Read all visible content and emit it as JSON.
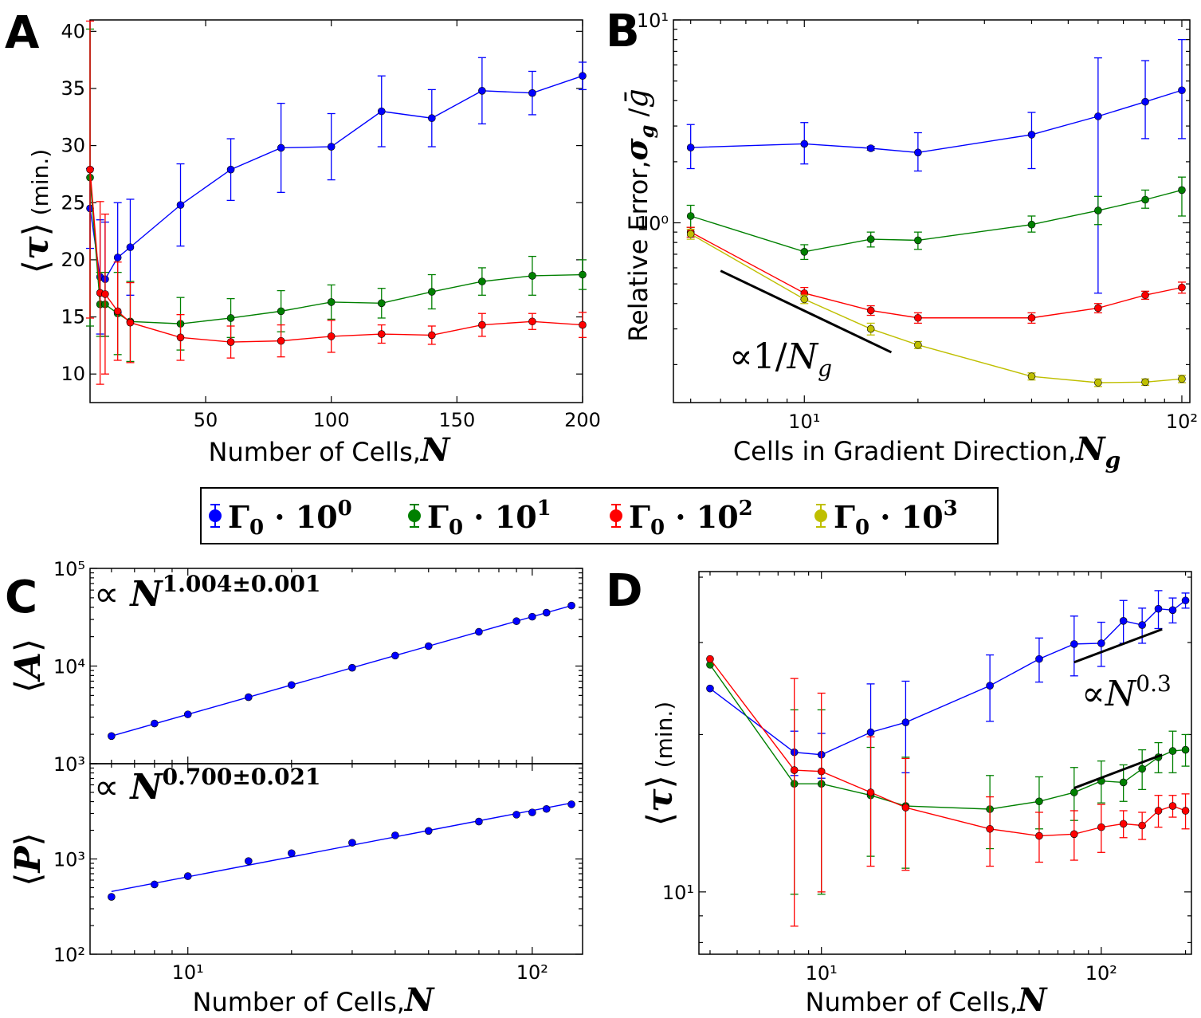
{
  "colors": {
    "blue": "#0000ff",
    "green": "#008000",
    "red": "#ff0000",
    "yellow": "#bfbf00",
    "black": "#000000"
  },
  "legend": {
    "entries": [
      {
        "label": "Γ₀ · 10⁰",
        "color": "blue"
      },
      {
        "label": "Γ₀ · 10¹",
        "color": "green"
      },
      {
        "label": "Γ₀ · 10²",
        "color": "red"
      },
      {
        "label": "Γ₀ · 10³",
        "color": "yellow"
      }
    ]
  },
  "chart_data": [
    {
      "panel": "A",
      "type": "line",
      "xlabel": "Number of Cells, N",
      "ylabel": "⟨τ⟩ (min.)",
      "xlim": [
        4,
        200
      ],
      "ylim": [
        7.5,
        41
      ],
      "xticks": [
        50,
        100,
        150,
        200
      ],
      "yticks": [
        10,
        15,
        20,
        25,
        30,
        35,
        40
      ],
      "x": [
        4,
        8,
        10,
        15,
        20,
        40,
        60,
        80,
        100,
        120,
        140,
        160,
        180,
        200
      ],
      "series": [
        {
          "color": "blue",
          "values": [
            24.5,
            18.5,
            18.3,
            20.2,
            21.1,
            24.8,
            27.9,
            29.8,
            29.9,
            33.0,
            32.4,
            34.8,
            34.6,
            36.1
          ],
          "err": [
            3.5,
            5.0,
            5.0,
            4.8,
            4.2,
            3.6,
            2.7,
            3.9,
            2.9,
            3.1,
            2.5,
            2.9,
            1.9,
            1.2
          ]
        },
        {
          "color": "green",
          "values": [
            27.2,
            16.1,
            16.1,
            15.3,
            14.6,
            14.4,
            14.9,
            15.5,
            16.3,
            16.2,
            17.2,
            18.1,
            18.6,
            18.7
          ],
          "err": [
            13,
            2.8,
            2.8,
            3.6,
            3.5,
            2.3,
            1.7,
            1.8,
            1.5,
            1.3,
            1.5,
            1.2,
            1.7,
            1.3
          ]
        },
        {
          "color": "red",
          "values": [
            27.9,
            17.1,
            17.0,
            15.5,
            14.5,
            13.2,
            12.8,
            12.9,
            13.3,
            13.5,
            13.4,
            14.3,
            14.6,
            14.3
          ],
          "err": [
            13,
            8,
            7,
            4.3,
            3.5,
            2.0,
            1.4,
            1.4,
            1.4,
            0.8,
            0.8,
            1.0,
            0.7,
            1.1
          ]
        }
      ]
    },
    {
      "panel": "B",
      "type": "line",
      "xlabel": "Cells in Gradient Direction, N_g",
      "ylabel": "Relative Error, σ_g / ḡ",
      "xscale": "log",
      "yscale": "log",
      "xlim": [
        4.5,
        105
      ],
      "ylim": [
        0.13,
        10
      ],
      "xticks": [
        "10¹",
        "10²"
      ],
      "yticks": [
        "10⁰",
        "10¹"
      ],
      "x": [
        5,
        10,
        15,
        20,
        40,
        60,
        80,
        100
      ],
      "series": [
        {
          "color": "blue",
          "values": [
            2.35,
            2.45,
            2.33,
            2.22,
            2.72,
            3.35,
            3.95,
            4.5
          ],
          "lo": [
            1.85,
            1.95,
            2.28,
            1.8,
            1.85,
            0.45,
            2.6,
            2.6
          ],
          "hi": [
            3.05,
            3.12,
            2.38,
            2.78,
            3.5,
            6.5,
            6.3,
            8.0
          ]
        },
        {
          "color": "green",
          "values": [
            1.08,
            0.72,
            0.83,
            0.82,
            0.98,
            1.15,
            1.3,
            1.45
          ],
          "lo": [
            0.95,
            0.66,
            0.76,
            0.74,
            0.9,
            0.98,
            1.18,
            1.08
          ],
          "hi": [
            1.22,
            0.78,
            0.9,
            0.9,
            1.08,
            1.35,
            1.45,
            1.68
          ]
        },
        {
          "color": "red",
          "values": [
            0.9,
            0.45,
            0.37,
            0.34,
            0.34,
            0.38,
            0.44,
            0.48
          ],
          "lo": [
            0.85,
            0.42,
            0.35,
            0.32,
            0.32,
            0.36,
            0.42,
            0.45
          ],
          "hi": [
            0.95,
            0.48,
            0.39,
            0.36,
            0.36,
            0.4,
            0.46,
            0.51
          ]
        },
        {
          "color": "yellow",
          "values": [
            0.88,
            0.42,
            0.3,
            0.25,
            0.175,
            0.163,
            0.164,
            0.17
          ],
          "lo": [
            0.83,
            0.4,
            0.28,
            0.24,
            0.168,
            0.156,
            0.158,
            0.163
          ],
          "hi": [
            0.93,
            0.44,
            0.32,
            0.26,
            0.182,
            0.17,
            0.17,
            0.177
          ]
        }
      ],
      "annotation": "∝1/N_g",
      "reference_line": {
        "x": [
          6,
          17
        ],
        "y": [
          0.58,
          0.23
        ]
      }
    },
    {
      "panel": "C",
      "type": "scatter",
      "xlabel": "Number of Cells, N",
      "xscale": "log",
      "xlim": [
        5.2,
        140
      ],
      "xticks": [
        "10¹",
        "10²"
      ],
      "subplots": [
        {
          "ylabel": "⟨A⟩",
          "yscale": "log",
          "ylim": [
            1000,
            100000
          ],
          "yticks": [
            "10³",
            "10⁴",
            "10⁵"
          ],
          "annotation": "∝ N^(1.004±0.001)",
          "x": [
            6,
            8,
            10,
            15,
            20,
            30,
            40,
            50,
            70,
            90,
            100,
            110,
            130
          ],
          "y": [
            1920,
            2580,
            3200,
            4800,
            6400,
            9600,
            12800,
            16000,
            22400,
            28800,
            32000,
            35200,
            41600
          ],
          "fit": {
            "x": [
              6,
              130
            ],
            "y": [
              1920,
              41600
            ]
          }
        },
        {
          "ylabel": "⟨P⟩",
          "yscale": "log",
          "ylim": [
            100,
            10000
          ],
          "yticks": [
            "10²",
            "10³"
          ],
          "annotation": "∝ N^(0.700±0.021)",
          "x": [
            6,
            8,
            10,
            15,
            20,
            30,
            40,
            50,
            70,
            90,
            100,
            110,
            130
          ],
          "y": [
            400,
            540,
            660,
            950,
            1150,
            1480,
            1770,
            1970,
            2470,
            2920,
            3080,
            3350,
            3750
          ],
          "fit": {
            "x": [
              6,
              130
            ],
            "y": [
              455,
              3870
            ]
          }
        }
      ]
    },
    {
      "panel": "D",
      "type": "line",
      "xlabel": "Number of Cells, N",
      "ylabel": "⟨τ⟩ (min.)",
      "xscale": "log",
      "yscale": "log",
      "xlim": [
        3.65,
        210
      ],
      "ylim": [
        7.6,
        41
      ],
      "xticks": [
        "10¹",
        "10²"
      ],
      "yticks": [
        "10¹"
      ],
      "x": [
        4,
        8,
        10,
        15,
        20,
        40,
        60,
        80,
        100,
        120,
        140,
        160,
        180,
        200
      ],
      "series": [
        {
          "color": "blue",
          "values": [
            24.5,
            18.5,
            18.3,
            20.2,
            21.1,
            24.8,
            27.9,
            29.8,
            29.9,
            33.0,
            32.4,
            34.8,
            34.6,
            36.1
          ],
          "err": [
            0,
            1.8,
            1.8,
            4.8,
            4.2,
            3.6,
            2.7,
            3.9,
            2.9,
            3.1,
            2.5,
            2.9,
            1.9,
            1.2
          ]
        },
        {
          "color": "green",
          "values": [
            27.2,
            16.1,
            16.1,
            15.3,
            14.6,
            14.4,
            14.9,
            15.5,
            16.3,
            16.2,
            17.2,
            18.1,
            18.6,
            18.7
          ],
          "err": [
            0,
            6.2,
            6.2,
            3.6,
            3.5,
            2.3,
            1.7,
            1.8,
            1.5,
            1.3,
            1.5,
            1.2,
            1.7,
            1.3
          ]
        },
        {
          "color": "red",
          "values": [
            27.9,
            17.1,
            17.0,
            15.5,
            14.5,
            13.2,
            12.8,
            12.9,
            13.3,
            13.5,
            13.4,
            14.3,
            14.6,
            14.3
          ],
          "err": [
            0,
            8.5,
            7.0,
            4.3,
            3.5,
            2.0,
            1.4,
            1.4,
            1.4,
            0.8,
            0.8,
            1.0,
            0.7,
            1.1
          ]
        }
      ],
      "annotation": "∝N^0.3",
      "reference_lines": [
        {
          "x": [
            80,
            165
          ],
          "y": [
            27.5,
            31.8
          ]
        },
        {
          "x": [
            80,
            165
          ],
          "y": [
            15.8,
            18.3
          ]
        }
      ]
    }
  ],
  "panel_labels": [
    "A",
    "B",
    "C",
    "D"
  ]
}
